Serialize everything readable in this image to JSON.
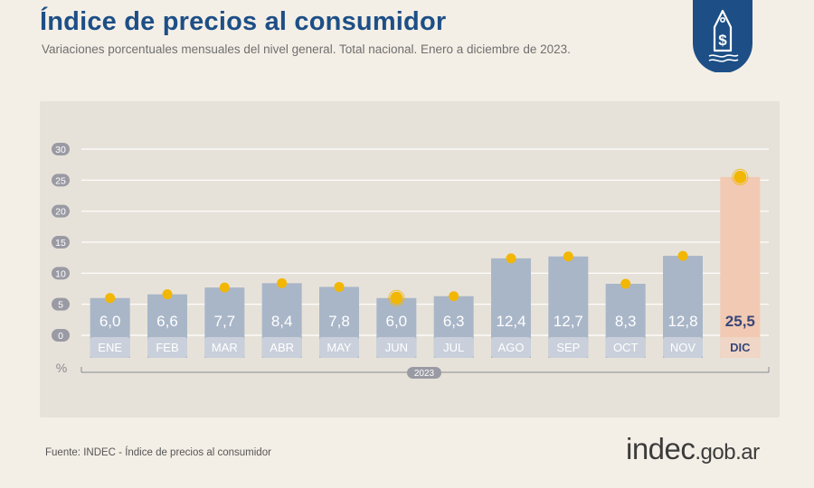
{
  "header": {
    "title": "Índice de precios al consumidor",
    "subtitle": "Variaciones porcentuales mensuales del nivel general. Total nacional. Enero a diciembre de 2023."
  },
  "footer": {
    "source": "Fuente: INDEC - Índice de precios al consumidor",
    "brand_main": "indec",
    "brand_tld": ".gob.ar"
  },
  "badge": {
    "icon": "price-tag-dollar-icon",
    "symbol": "$"
  },
  "colors": {
    "title": "#1d4f86",
    "bar": "#a9b6c8",
    "bar_highlight": "#f2c9b2",
    "dot": "#f2b705",
    "badge": "#1d4f86",
    "grid": "#ffffff",
    "tick_pill": "#9a9aa4"
  },
  "chart_data": {
    "type": "bar",
    "categories": [
      "ENE",
      "FEB",
      "MAR",
      "ABR",
      "MAY",
      "JUN",
      "JUL",
      "AGO",
      "SEP",
      "OCT",
      "NOV",
      "DIC"
    ],
    "values": [
      6.0,
      6.6,
      7.7,
      8.4,
      7.8,
      6.0,
      6.3,
      12.4,
      12.7,
      8.3,
      12.8,
      25.5
    ],
    "value_labels": [
      "6,0",
      "6,6",
      "7,7",
      "8,4",
      "7,8",
      "6,0",
      "6,3",
      "12,4",
      "12,7",
      "8,3",
      "12,8",
      "25,5"
    ],
    "highlight_index": 11,
    "ylim": [
      0,
      30
    ],
    "yticks": [
      0,
      5,
      10,
      15,
      20,
      25,
      30
    ],
    "ylabel": "%",
    "xlabel": "2023",
    "grid": true
  }
}
